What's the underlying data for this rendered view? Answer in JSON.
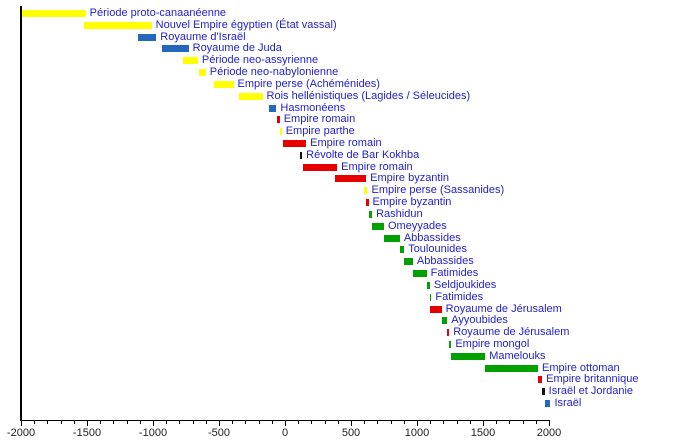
{
  "chart_data": {
    "type": "bar",
    "subtype": "horizontal-timeline",
    "title": "",
    "xlabel": "",
    "ylabel": "",
    "x_axis": {
      "min": -2000,
      "max": 2000,
      "major_step": 500,
      "minor_step": 100,
      "tick_labels": [
        "-2000",
        "-1500",
        "-1000",
        "-500",
        "0",
        "500",
        "1000",
        "1500",
        "2000"
      ]
    },
    "colors": {
      "yellow": "#ffff00",
      "blue": "#2566be",
      "red": "#e60000",
      "green": "#00a000",
      "black": "#111111",
      "label_text": "#2222cc",
      "axis": "#000000",
      "tick_text": "#222222",
      "background": "#ffffff"
    },
    "rows": [
      {
        "label": "Période proto-canaanéenne",
        "start": -2000,
        "end": -1510,
        "color": "yellow"
      },
      {
        "label": "Nouvel Empire égyptien (État vassal)",
        "start": -1520,
        "end": -1010,
        "color": "yellow"
      },
      {
        "label": "Royaume d'Israël",
        "start": -1115,
        "end": -975,
        "color": "blue"
      },
      {
        "label": "Royaume de Juda",
        "start": -935,
        "end": -730,
        "color": "blue"
      },
      {
        "label": "Période neo-assyrienne",
        "start": -775,
        "end": -660,
        "color": "yellow"
      },
      {
        "label": "Période neo-nabylonienne",
        "start": -650,
        "end": -600,
        "color": "yellow"
      },
      {
        "label": "Empire perse (Achéménides)",
        "start": -540,
        "end": -390,
        "color": "yellow"
      },
      {
        "label": "Rois hellénistiques (Lagides / Séleucides)",
        "start": -345,
        "end": -170,
        "color": "yellow"
      },
      {
        "label": "Hasmonéens",
        "start": -125,
        "end": -65,
        "color": "blue"
      },
      {
        "label": "Empire romain",
        "start": -63,
        "end": -40,
        "color": "red"
      },
      {
        "label": "Empire parthe",
        "start": -40,
        "end": -25,
        "color": "yellow"
      },
      {
        "label": "Empire romain",
        "start": -15,
        "end": 160,
        "color": "red"
      },
      {
        "label": "Révolte de Bar Kokhba",
        "start": 115,
        "end": 130,
        "color": "black"
      },
      {
        "label": "Empire romain",
        "start": 140,
        "end": 395,
        "color": "red"
      },
      {
        "label": "Empire byzantin",
        "start": 375,
        "end": 615,
        "color": "red"
      },
      {
        "label": "Empire perse (Sassanides)",
        "start": 600,
        "end": 625,
        "color": "yellow"
      },
      {
        "label": "Empire byzantin",
        "start": 617,
        "end": 633,
        "color": "red"
      },
      {
        "label": "Rashidun",
        "start": 633,
        "end": 660,
        "color": "green"
      },
      {
        "label": "Omeyyades",
        "start": 660,
        "end": 750,
        "color": "green"
      },
      {
        "label": "Abbassides",
        "start": 750,
        "end": 870,
        "color": "green"
      },
      {
        "label": "Toulounides",
        "start": 870,
        "end": 903,
        "color": "green"
      },
      {
        "label": "Abbassides",
        "start": 905,
        "end": 969,
        "color": "green"
      },
      {
        "label": "Fatimides",
        "start": 969,
        "end": 1073,
        "color": "green"
      },
      {
        "label": "Seldjoukides",
        "start": 1073,
        "end": 1098,
        "color": "green"
      },
      {
        "label": "Fatimides",
        "start": 1098,
        "end": 1107,
        "color": "green"
      },
      {
        "label": "Royaume de Jérusalem",
        "start": 1099,
        "end": 1187,
        "color": "red"
      },
      {
        "label": "Ayyoubides",
        "start": 1187,
        "end": 1229,
        "color": "green"
      },
      {
        "label": "Royaume de Jérusalem",
        "start": 1229,
        "end": 1244,
        "color": "red"
      },
      {
        "label": "Empire mongol",
        "start": 1246,
        "end": 1260,
        "color": "green"
      },
      {
        "label": "Mamelouks",
        "start": 1260,
        "end": 1517,
        "color": "green"
      },
      {
        "label": "Empire ottoman",
        "start": 1517,
        "end": 1917,
        "color": "green"
      },
      {
        "label": "Empire britannique",
        "start": 1917,
        "end": 1948,
        "color": "red"
      },
      {
        "label": "Israël et Jordanie",
        "start": 1948,
        "end": 1967,
        "color": "black"
      },
      {
        "label": "Israël",
        "start": 1967,
        "end": 2011,
        "color": "blue"
      }
    ]
  }
}
